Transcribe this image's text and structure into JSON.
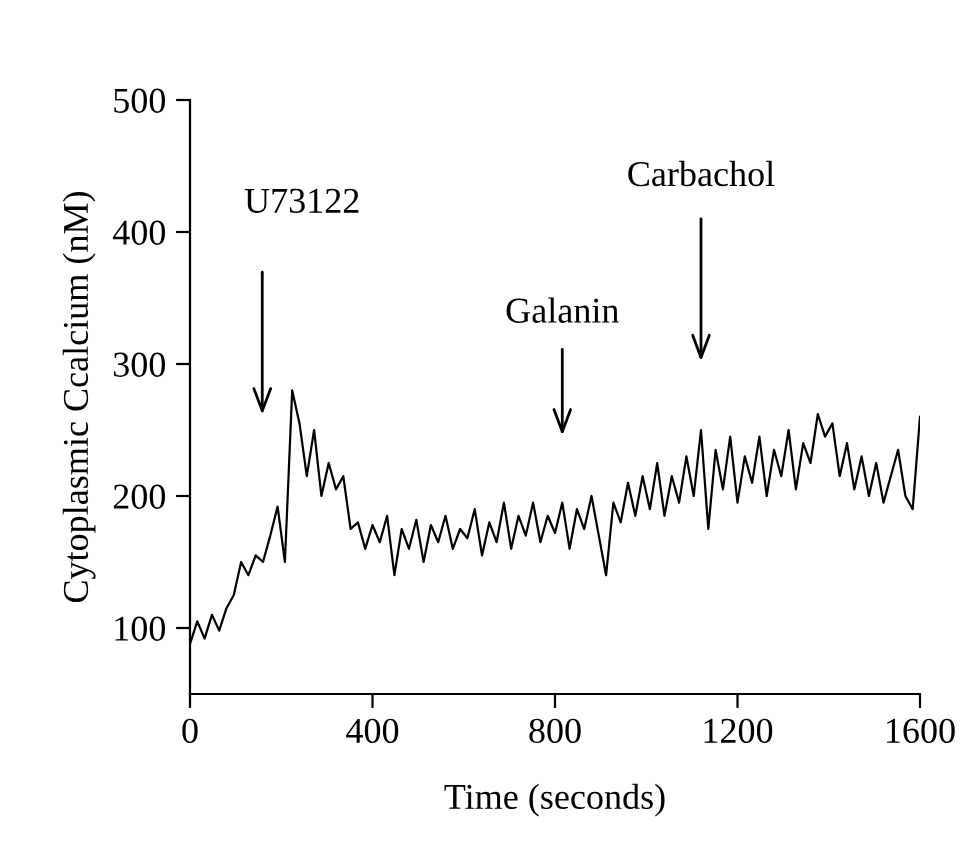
{
  "chart_data": {
    "type": "line",
    "xlabel": "Time (seconds)",
    "ylabel": "Cytoplasmic Ccalcium (nM)",
    "x": [
      0,
      16,
      32,
      48,
      64,
      80,
      96,
      112,
      128,
      144,
      160,
      176,
      192,
      208,
      224,
      240,
      256,
      272,
      288,
      304,
      320,
      336,
      352,
      368,
      384,
      400,
      416,
      432,
      448,
      464,
      480,
      496,
      512,
      528,
      544,
      560,
      576,
      592,
      608,
      624,
      640,
      656,
      672,
      688,
      704,
      720,
      736,
      752,
      768,
      784,
      800,
      816,
      832,
      848,
      864,
      880,
      896,
      912,
      928,
      944,
      960,
      976,
      992,
      1008,
      1024,
      1040,
      1056,
      1072,
      1088,
      1104,
      1120,
      1136,
      1152,
      1168,
      1184,
      1200,
      1216,
      1232,
      1248,
      1264,
      1280,
      1296,
      1312,
      1328,
      1344,
      1360,
      1376,
      1392,
      1408,
      1424,
      1440,
      1456,
      1472,
      1488,
      1504,
      1520,
      1536,
      1552,
      1568,
      1584,
      1600
    ],
    "series": [
      {
        "color": "#000000",
        "values": [
          88,
          105,
          92,
          110,
          98,
          115,
          125,
          150,
          140,
          155,
          150,
          170,
          192,
          150,
          280,
          255,
          215,
          250,
          200,
          225,
          205,
          215,
          175,
          180,
          160,
          178,
          165,
          185,
          140,
          175,
          160,
          182,
          150,
          178,
          165,
          185,
          160,
          175,
          168,
          190,
          155,
          180,
          165,
          195,
          160,
          185,
          170,
          195,
          165,
          185,
          172,
          195,
          160,
          190,
          175,
          200,
          170,
          140,
          195,
          180,
          210,
          185,
          215,
          190,
          225,
          185,
          215,
          195,
          230,
          200,
          250,
          175,
          235,
          205,
          245,
          195,
          230,
          210,
          245,
          200,
          235,
          215,
          250,
          205,
          240,
          225,
          262,
          245,
          255,
          215,
          240,
          205,
          230,
          200,
          225,
          195,
          215,
          235,
          200,
          190,
          260
        ]
      }
    ],
    "xlim": [
      0,
      1600
    ],
    "xticks": [
      0,
      400,
      800,
      1200,
      1600
    ],
    "ylim": [
      50,
      500
    ],
    "yticks": [
      100,
      200,
      300,
      400,
      500
    ],
    "grid": false,
    "legend": false,
    "marker": "none",
    "line_style": "solid",
    "annotations": [
      "U73122",
      "Galanin",
      "Carbachol"
    ]
  }
}
